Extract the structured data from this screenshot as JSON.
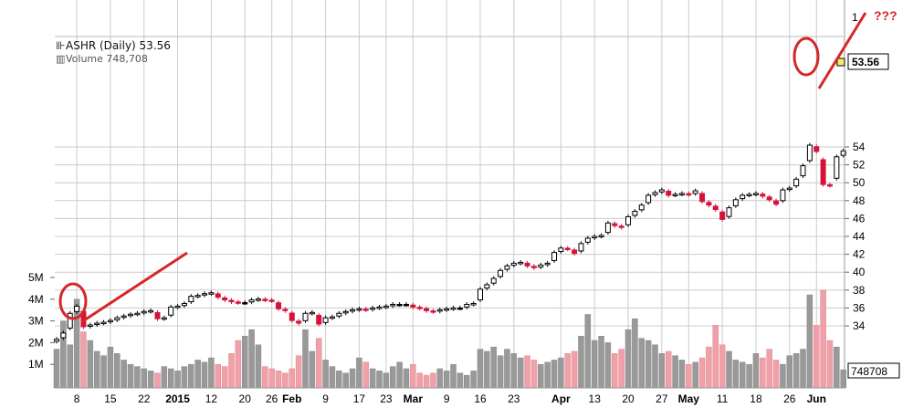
{
  "chart_data": {
    "type": "candlestick",
    "title": "ASHR (Daily) 53.56",
    "ticker": "ASHR",
    "interval": "Daily",
    "last_price": "53.56",
    "volume_label": "Volume 748,708",
    "volume_last_label": "748708",
    "price_ticks": [
      "34",
      "36",
      "38",
      "40",
      "42",
      "44",
      "46",
      "48",
      "50",
      "52",
      "54"
    ],
    "price_tick_values": [
      34,
      36,
      38,
      40,
      42,
      44,
      46,
      48,
      50,
      52,
      54
    ],
    "ylim": [
      32,
      56
    ],
    "volume_ticks": [
      "1M",
      "2M",
      "3M",
      "4M",
      "5M"
    ],
    "volume_tick_values": [
      1,
      2,
      3,
      4,
      5
    ],
    "x_labels": [
      {
        "t": "8",
        "i": 3,
        "bold": false
      },
      {
        "t": "15",
        "i": 8,
        "bold": false
      },
      {
        "t": "22",
        "i": 13,
        "bold": false
      },
      {
        "t": "2015",
        "i": 18,
        "bold": true
      },
      {
        "t": "12",
        "i": 23,
        "bold": false
      },
      {
        "t": "20",
        "i": 28,
        "bold": false
      },
      {
        "t": "26",
        "i": 32,
        "bold": false
      },
      {
        "t": "Feb",
        "i": 35,
        "bold": true
      },
      {
        "t": "9",
        "i": 40,
        "bold": false
      },
      {
        "t": "17",
        "i": 45,
        "bold": false
      },
      {
        "t": "23",
        "i": 49,
        "bold": false
      },
      {
        "t": "Mar",
        "i": 53,
        "bold": true
      },
      {
        "t": "9",
        "i": 58,
        "bold": false
      },
      {
        "t": "16",
        "i": 63,
        "bold": false
      },
      {
        "t": "23",
        "i": 68,
        "bold": false
      },
      {
        "t": "Apr",
        "i": 75,
        "bold": true
      },
      {
        "t": "13",
        "i": 80,
        "bold": false
      },
      {
        "t": "20",
        "i": 85,
        "bold": false
      },
      {
        "t": "27",
        "i": 90,
        "bold": false
      },
      {
        "t": "May",
        "i": 94,
        "bold": true
      },
      {
        "t": "11",
        "i": 99,
        "bold": false
      },
      {
        "t": "18",
        "i": 104,
        "bold": false
      },
      {
        "t": "26",
        "i": 109,
        "bold": false
      },
      {
        "t": "Jun",
        "i": 113,
        "bold": true
      }
    ],
    "annotation_text": "???",
    "partial_tick_label": "1",
    "colors": {
      "up": "#000000",
      "down": "#d6123a",
      "vol_up": "#999999",
      "vol_down": "#f0a0a8",
      "grid": "#cccccc",
      "annotation": "#d62728",
      "last_tag": "#f2ef6a"
    },
    "closes": [
      32.5,
      33.2,
      35.4,
      36.2,
      33.9,
      34.1,
      34.3,
      34.4,
      34.6,
      34.9,
      35.1,
      35.3,
      35.4,
      35.6,
      35.7,
      34.8,
      34.9,
      36.1,
      36.2,
      36.5,
      37.3,
      37.4,
      37.6,
      37.7,
      37.2,
      36.9,
      36.7,
      36.6,
      36.6,
      36.9,
      37.0,
      36.9,
      36.8,
      35.9,
      35.7,
      34.6,
      34.3,
      35.4,
      35.5,
      34.2,
      34.9,
      35.0,
      35.4,
      35.6,
      35.8,
      35.9,
      35.8,
      36.0,
      36.1,
      36.2,
      36.4,
      36.4,
      36.4,
      36.1,
      36.0,
      35.7,
      35.6,
      35.8,
      35.9,
      36.0,
      36.0,
      36.4,
      36.5,
      38.1,
      38.6,
      39.3,
      40.2,
      40.7,
      41.0,
      41.1,
      40.7,
      40.5,
      40.8,
      41.0,
      42.2,
      42.7,
      42.6,
      42.1,
      43.2,
      43.8,
      44.0,
      44.1,
      45.5,
      45.2,
      45.0,
      46.2,
      46.8,
      47.5,
      48.6,
      48.9,
      49.2,
      48.6,
      48.7,
      48.8,
      48.7,
      49.1,
      47.9,
      47.5,
      47.0,
      45.9,
      47.2,
      48.1,
      48.6,
      48.7,
      48.8,
      48.5,
      48.1,
      47.6,
      49.2,
      49.4,
      50.4,
      51.9,
      54.2,
      53.5,
      49.8,
      49.7,
      52.9,
      53.56
    ],
    "volume_millions": [
      1.7,
      3.0,
      1.9,
      4.0,
      2.5,
      2.1,
      1.6,
      1.4,
      1.8,
      1.5,
      1.2,
      1.0,
      0.9,
      0.8,
      0.7,
      0.6,
      0.9,
      0.8,
      0.7,
      0.9,
      1.0,
      1.2,
      1.1,
      1.3,
      1.0,
      0.9,
      1.5,
      2.1,
      2.3,
      2.6,
      1.9,
      0.9,
      0.8,
      0.7,
      0.6,
      0.8,
      1.4,
      2.6,
      1.6,
      2.2,
      1.2,
      0.9,
      0.7,
      0.6,
      0.8,
      1.3,
      1.1,
      0.8,
      0.7,
      0.6,
      0.9,
      1.1,
      0.8,
      1.0,
      0.6,
      0.5,
      0.6,
      0.8,
      0.7,
      1.0,
      0.6,
      0.5,
      0.7,
      1.7,
      1.6,
      1.8,
      1.4,
      1.7,
      1.5,
      1.3,
      1.4,
      1.2,
      1.0,
      1.1,
      1.2,
      1.3,
      1.5,
      1.6,
      2.3,
      3.3,
      2.1,
      2.3,
      2.0,
      1.5,
      1.7,
      2.6,
      3.1,
      2.2,
      2.1,
      1.9,
      1.5,
      1.6,
      1.4,
      1.2,
      1.0,
      1.1,
      1.3,
      1.8,
      2.8,
      1.9,
      1.6,
      1.2,
      1.1,
      1.0,
      1.5,
      1.3,
      1.7,
      1.2,
      1.0,
      1.4,
      1.5,
      1.7,
      4.2,
      2.8,
      4.4,
      2.1,
      1.8,
      0.75
    ]
  }
}
